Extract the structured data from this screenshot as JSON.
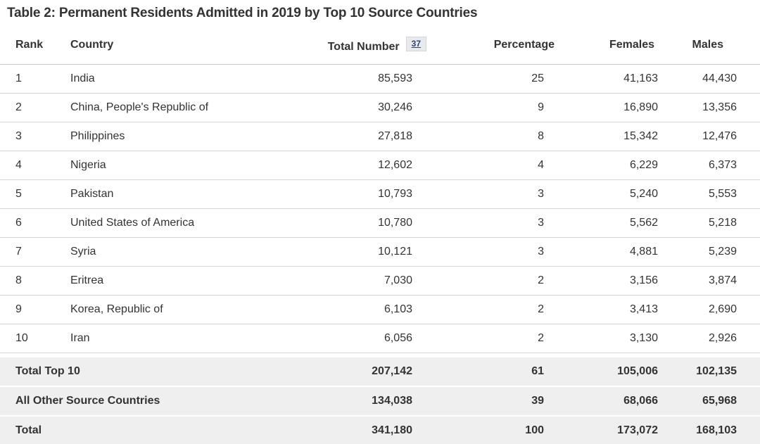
{
  "table": {
    "title": "Table 2: Permanent Residents Admitted in 2019 by Top 10 Source Countries",
    "columns": [
      "Rank",
      "Country",
      "Total Number",
      "Percentage",
      "Females",
      "Males"
    ],
    "footnote_marker": "37",
    "rows": [
      {
        "rank": "1",
        "country": "India",
        "total": "85,593",
        "percentage": "25",
        "females": "41,163",
        "males": "44,430"
      },
      {
        "rank": "2",
        "country": "China, People's Republic of",
        "total": "30,246",
        "percentage": "9",
        "females": "16,890",
        "males": "13,356"
      },
      {
        "rank": "3",
        "country": "Philippines",
        "total": "27,818",
        "percentage": "8",
        "females": "15,342",
        "males": "12,476"
      },
      {
        "rank": "4",
        "country": "Nigeria",
        "total": "12,602",
        "percentage": "4",
        "females": "6,229",
        "males": "6,373"
      },
      {
        "rank": "5",
        "country": "Pakistan",
        "total": "10,793",
        "percentage": "3",
        "females": "5,240",
        "males": "5,553"
      },
      {
        "rank": "6",
        "country": "United States of America",
        "total": "10,780",
        "percentage": "3",
        "females": "5,562",
        "males": "5,218"
      },
      {
        "rank": "7",
        "country": "Syria",
        "total": "10,121",
        "percentage": "3",
        "females": "4,881",
        "males": "5,239"
      },
      {
        "rank": "8",
        "country": "Eritrea",
        "total": "7,030",
        "percentage": "2",
        "females": "3,156",
        "males": "3,874"
      },
      {
        "rank": "9",
        "country": "Korea, Republic of",
        "total": "6,103",
        "percentage": "2",
        "females": "3,413",
        "males": "2,690"
      },
      {
        "rank": "10",
        "country": "Iran",
        "total": "6,056",
        "percentage": "2",
        "females": "3,130",
        "males": "2,926"
      }
    ],
    "footer_rows": [
      {
        "label": "Total Top 10",
        "total": "207,142",
        "percentage": "61",
        "females": "105,006",
        "males": "102,135"
      },
      {
        "label": "All Other Source Countries",
        "total": "134,038",
        "percentage": "39",
        "females": "68,066",
        "males": "65,968"
      },
      {
        "label": "Total",
        "total": "341,180",
        "percentage": "100",
        "females": "173,072",
        "males": "168,103"
      }
    ],
    "colors": {
      "text": "#333333",
      "footnote_link": "#2b4380",
      "footnote_bg": "#e9eaec",
      "footnote_border": "#d3d5d8",
      "row_border": "#d6d6d6",
      "header_border": "#c8c8c8",
      "footer_row_bg": "#efefef"
    }
  }
}
